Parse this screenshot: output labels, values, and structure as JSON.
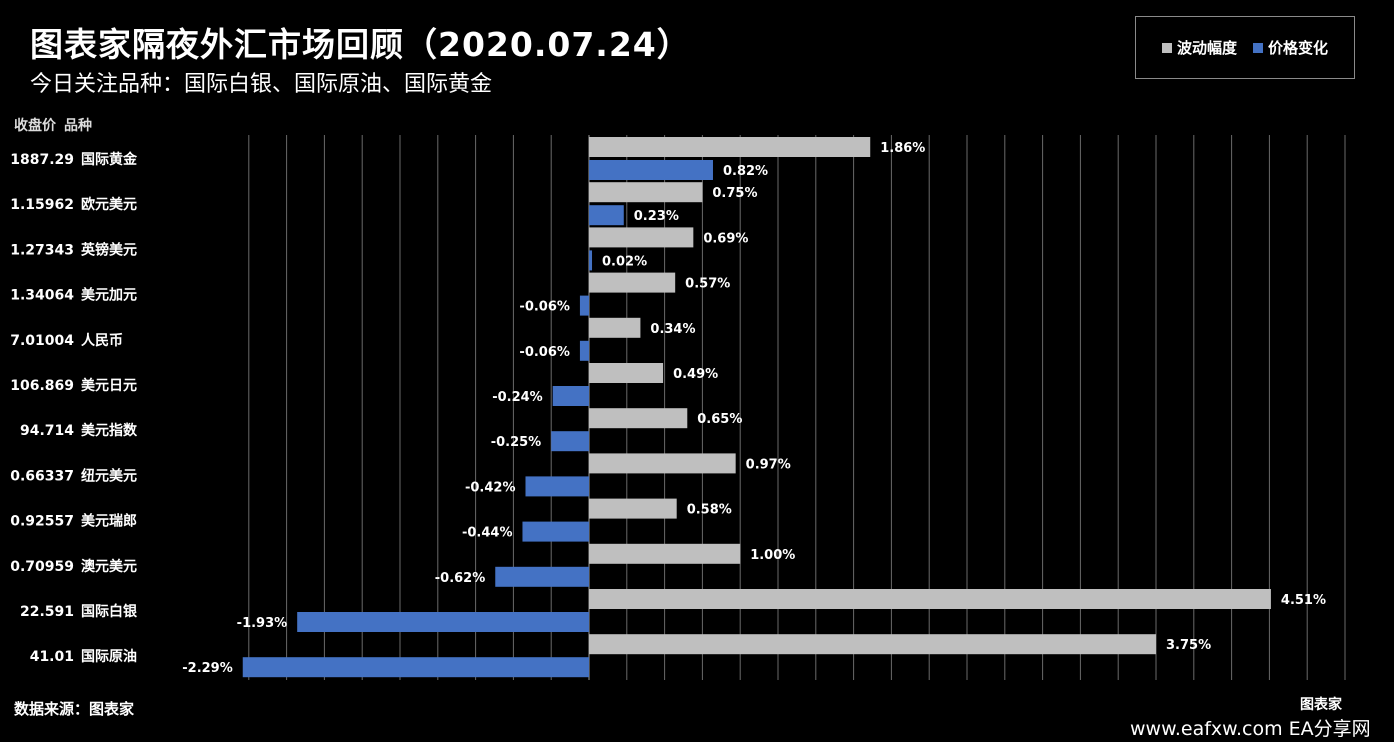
{
  "title": "图表家隔夜外汇市场回顾（2020.07.24）",
  "subtitle": "今日关注品种：国际白银、国际原油、国际黄金",
  "column_headers": {
    "price": "收盘价",
    "name": "品种"
  },
  "source": "数据来源：图表家",
  "watermark": {
    "site": "www.eafxw.com",
    "label": "EA分享网",
    "brand": "图表家"
  },
  "colors": {
    "volatility": "#bfbfbf",
    "change": "#4472c4",
    "background": "#000000"
  },
  "chart_data": {
    "type": "bar",
    "orientation": "horizontal",
    "categories": [
      "国际黄金",
      "欧元美元",
      "英镑美元",
      "美元加元",
      "人民币",
      "美元日元",
      "美元指数",
      "纽元美元",
      "美元瑞郎",
      "澳元美元",
      "国际白银",
      "国际原油"
    ],
    "close_prices": [
      "1887.29",
      "1.15962",
      "1.27343",
      "1.34064",
      "7.01004",
      "106.869",
      "94.714",
      "0.66337",
      "0.92557",
      "0.70959",
      "22.591",
      "41.01"
    ],
    "series": [
      {
        "name": "波动幅度",
        "values": [
          1.86,
          0.75,
          0.69,
          0.57,
          0.34,
          0.49,
          0.65,
          0.97,
          0.58,
          1.0,
          4.51,
          3.75
        ],
        "labels": [
          "1.86%",
          "0.75%",
          "0.69%",
          "0.57%",
          "0.34%",
          "0.49%",
          "0.65%",
          "0.97%",
          "0.58%",
          "1.00%",
          "4.51%",
          "3.75%"
        ]
      },
      {
        "name": "价格变化",
        "values": [
          0.82,
          0.23,
          0.02,
          -0.06,
          -0.06,
          -0.24,
          -0.25,
          -0.42,
          -0.44,
          -0.62,
          -1.93,
          -2.29
        ],
        "labels": [
          "0.82%",
          "0.23%",
          "0.02%",
          "-0.06%",
          "-0.06%",
          "-0.24%",
          "-0.25%",
          "-0.42%",
          "-0.44%",
          "-0.62%",
          "-1.93%",
          "-2.29%"
        ]
      }
    ],
    "xlim": [
      -2.3,
      5.0
    ],
    "grid": true,
    "legend_position": "top-right"
  }
}
